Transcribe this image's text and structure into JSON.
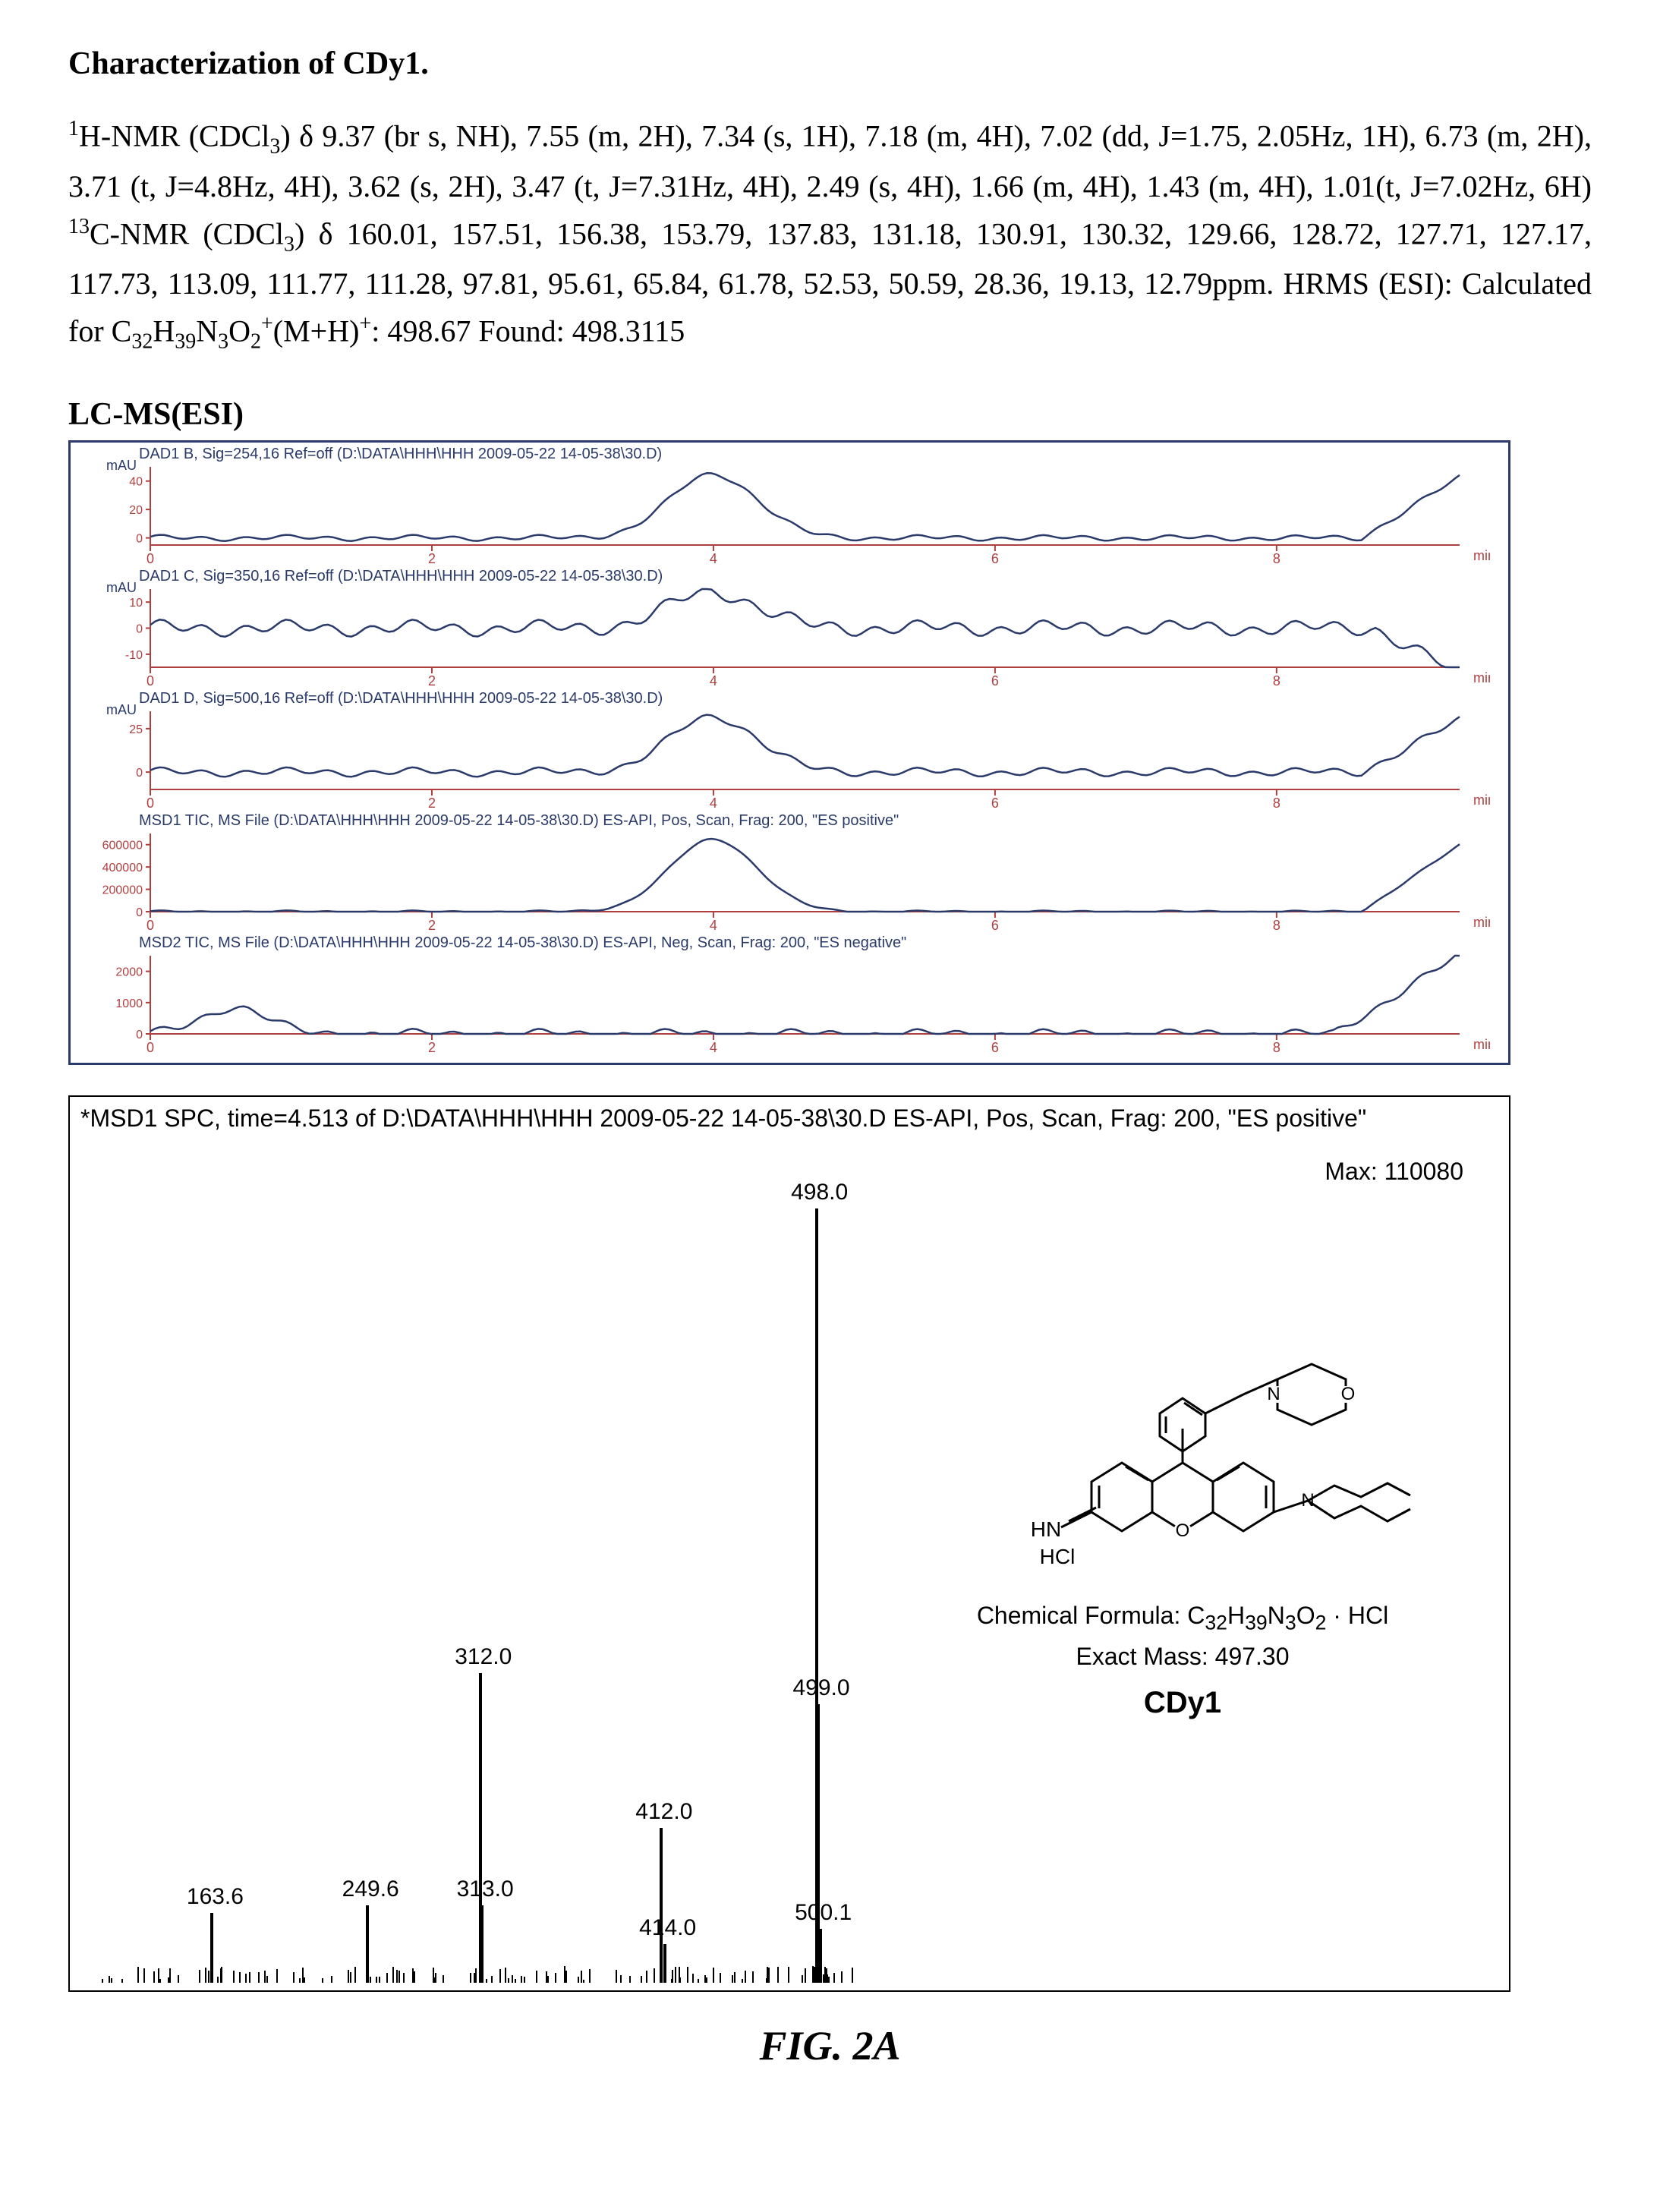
{
  "title": "Characterization of CDy1.",
  "nmr_html": "<sup>1</sup>H-NMR (CDCl<sub>3</sub>) δ 9.37 (br s, NH), 7.55 (m, 2H), 7.34 (s, 1H), 7.18 (m, 4H), 7.02 (dd, J=1.75, 2.05Hz, 1H), 6.73 (m, 2H), 3.71 (t, J=4.8Hz, 4H), 3.62 (s, 2H), 3.47 (t, J=7.31Hz, 4H), 2.49 (s, 4H), 1.66 (m, 4H), 1.43 (m, 4H), 1.01(t, J=7.02Hz, 6H) <sup>13</sup>C-NMR (CDCl<sub>3</sub>) δ 160.01, 157.51, 156.38, 153.79, 137.83, 131.18, 130.91, 130.32, 129.66, 128.72, 127.71, 127.17, 117.73, 113.09, 111.77, 111.28, 97.81, 95.61, 65.84, 61.78, 52.53, 50.59, 28.36, 19.13, 12.79ppm. HRMS (ESI): Calculated for C<sub>32</sub>H<sub>39</sub>N<sub>3</sub>O<sub>2</sub><sup>+</sup>(M+H)<sup>+</sup>: 498.67 Found: 498.3115",
  "lcms_label": "LC-MS(ESI)",
  "traces": [
    {
      "caption": "DAD1 B, Sig=254,16 Ref=off (D:\\DATA\\HHH\\HHH 2009-05-22 14-05-38\\30.D)",
      "ylabel": "mAU",
      "yticks": [
        "40",
        "20",
        "0"
      ],
      "ytick_vals": [
        40,
        20,
        0
      ],
      "ymax": 50,
      "ymin": -5,
      "peak_h": 45,
      "noise_amp": 4,
      "tail_rise": true
    },
    {
      "caption": "DAD1 C, Sig=350,16 Ref=off (D:\\DATA\\HHH\\HHH 2009-05-22 14-05-38\\30.D)",
      "ylabel": "mAU",
      "yticks": [
        "10",
        "0",
        "-10"
      ],
      "ytick_vals": [
        10,
        0,
        -10
      ],
      "ymax": 15,
      "ymin": -15,
      "peak_h": 14,
      "noise_amp": 6,
      "tail_dip": true
    },
    {
      "caption": "DAD1 D, Sig=500,16 Ref=off (D:\\DATA\\HHH\\HHH 2009-05-22 14-05-38\\30.D)",
      "ylabel": "mAU",
      "yticks": [
        "25",
        "0"
      ],
      "ytick_vals": [
        25,
        0
      ],
      "ymax": 35,
      "ymin": -10,
      "peak_h": 32,
      "noise_amp": 5,
      "tail_rise": true
    },
    {
      "caption": "MSD1 TIC, MS File (D:\\DATA\\HHH\\HHH 2009-05-22 14-05-38\\30.D)   ES-API, Pos, Scan, Frag: 200, \"ES positive\"",
      "ylabel": "",
      "yticks": [
        "600000",
        "400000",
        "200000",
        "0"
      ],
      "ytick_vals": [
        600000,
        400000,
        200000,
        0
      ],
      "ymax": 700000,
      "ymin": 0,
      "peak_h": 650000,
      "noise_amp": 20000,
      "tail_rise": true
    },
    {
      "caption": "MSD2 TIC, MS File (D:\\DATA\\HHH\\HHH 2009-05-22 14-05-38\\30.D)   ES-API, Neg, Scan, Frag: 200, \"ES negative\"",
      "ylabel": "",
      "yticks": [
        "2000",
        "1000",
        "0"
      ],
      "ytick_vals": [
        2000,
        1000,
        0
      ],
      "ymax": 2500,
      "ymin": 0,
      "peak_h": 0,
      "noise_amp": 300,
      "bump_start": true,
      "tail_rise_big": true
    }
  ],
  "trace_x": {
    "min": 0,
    "max": 9.3,
    "ticks": [
      0,
      2,
      4,
      6,
      8
    ],
    "label": "min",
    "peak_x": 4.0
  },
  "trace_colors": {
    "line": "#2a3a6a",
    "axis": "#b04040",
    "tick": "#b04040",
    "text": "#2a3a6a"
  },
  "ms_header": "*MSD1 SPC, time=4.513 of D:\\DATA\\HHH\\HHH 2009-05-22 14-05-38\\30.D   ES-API, Pos, Scan, Frag: 200, \"ES positive\"",
  "ms_max_label": "Max: 110080",
  "ms_peaks": [
    {
      "mz": 163.6,
      "h": 0.09
    },
    {
      "mz": 249.6,
      "h": 0.1
    },
    {
      "mz": 312.0,
      "h": 0.4
    },
    {
      "mz": 313.0,
      "h": 0.1
    },
    {
      "mz": 412.0,
      "h": 0.2
    },
    {
      "mz": 414.0,
      "h": 0.05
    },
    {
      "mz": 498.0,
      "h": 1.0
    },
    {
      "mz": 499.0,
      "h": 0.36
    },
    {
      "mz": 500.1,
      "h": 0.07
    }
  ],
  "ms_xrange": {
    "min": 100,
    "max": 520
  },
  "ms_plot_height": 1020,
  "molecule": {
    "formula_html": "Chemical Formula: C<sub>32</sub>H<sub>39</sub>N<sub>3</sub>O<sub>2</sub> · HCl",
    "mass": "Exact Mass: 497.30",
    "name": "CDy1",
    "hn_label": "HN",
    "hcl_label": "HCl",
    "n_label": "N",
    "o_label": "O"
  },
  "fig_caption": "FIG. 2A"
}
